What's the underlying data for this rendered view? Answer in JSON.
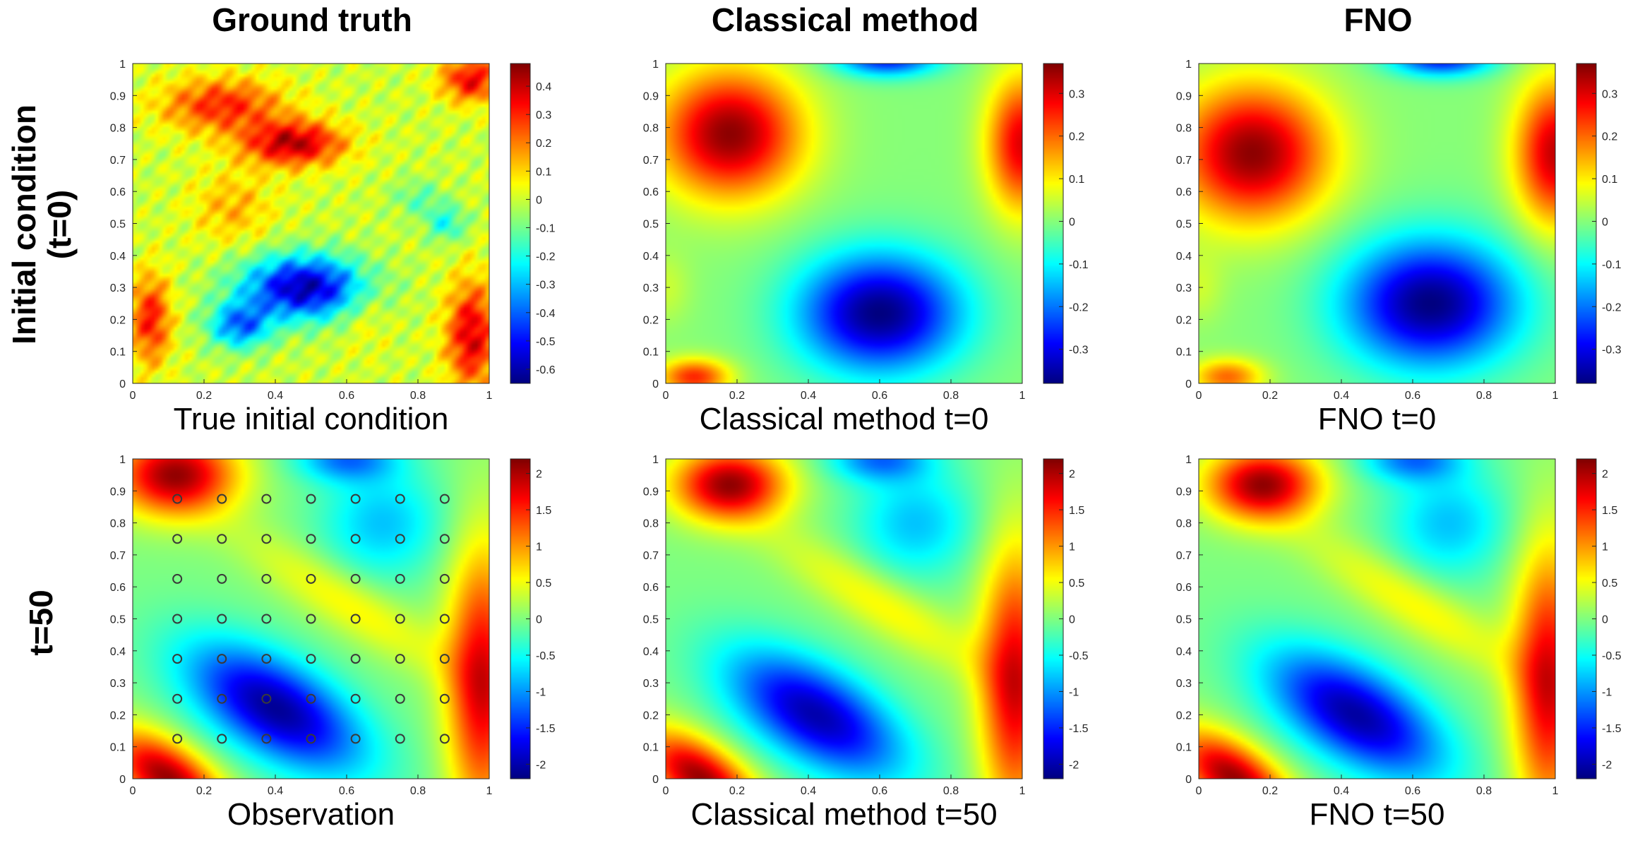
{
  "figure": {
    "column_titles": [
      "Ground truth",
      "Classical method",
      "FNO"
    ],
    "row_titles": [
      [
        "Initial condition",
        "(t=0)"
      ],
      [
        "t=50"
      ]
    ]
  },
  "chart_data": [
    {
      "id": "p00",
      "type": "heatmap",
      "row": 0,
      "col": 0,
      "caption": "True initial condition",
      "colormap": "jet",
      "xlim": [
        0,
        1
      ],
      "ylim": [
        0,
        1
      ],
      "xticks": [
        "0",
        "0.2",
        "0.4",
        "0.6",
        "0.8",
        "1"
      ],
      "yticks": [
        "0",
        "0.1",
        "0.2",
        "0.3",
        "0.4",
        "0.5",
        "0.6",
        "0.7",
        "0.8",
        "0.9",
        "1"
      ],
      "clim": [
        -0.65,
        0.48
      ],
      "cbar_ticks": [
        0.4,
        0.3,
        0.2,
        0.1,
        0,
        -0.1,
        -0.2,
        -0.3,
        -0.4,
        -0.5,
        -0.6
      ],
      "cbar_labels": [
        "0.4",
        "0.3",
        "0.2",
        "0.1",
        "0",
        "-0.1",
        "-0.2",
        "-0.3",
        "-0.4",
        "-0.5",
        "-0.6"
      ],
      "features": [
        {
          "x": 0.48,
          "y": 0.3,
          "sx": 0.12,
          "sy": 0.07,
          "v": -0.6
        },
        {
          "x": 0.3,
          "y": 0.18,
          "sx": 0.06,
          "sy": 0.05,
          "v": -0.38
        },
        {
          "x": 0.45,
          "y": 0.75,
          "sx": 0.1,
          "sy": 0.05,
          "v": 0.42
        },
        {
          "x": 0.25,
          "y": 0.87,
          "sx": 0.12,
          "sy": 0.06,
          "v": 0.3
        },
        {
          "x": 0.95,
          "y": 0.95,
          "sx": 0.06,
          "sy": 0.05,
          "v": 0.35
        },
        {
          "x": 0.95,
          "y": 0.15,
          "sx": 0.05,
          "sy": 0.12,
          "v": 0.38
        },
        {
          "x": 0.05,
          "y": 0.2,
          "sx": 0.04,
          "sy": 0.1,
          "v": 0.32
        },
        {
          "x": 0.28,
          "y": 0.55,
          "sx": 0.08,
          "sy": 0.08,
          "v": 0.14
        },
        {
          "x": 0.88,
          "y": 0.5,
          "sx": 0.04,
          "sy": 0.04,
          "v": -0.2
        },
        {
          "x": 0.8,
          "y": 0.58,
          "sx": 0.05,
          "sy": 0.04,
          "v": -0.12
        },
        {
          "x": 0.65,
          "y": 0.22,
          "sx": 0.05,
          "sy": 0.08,
          "v": 0.08
        }
      ],
      "noise": 0.05
    },
    {
      "id": "p01",
      "type": "heatmap",
      "row": 0,
      "col": 1,
      "caption": "Classical method t=0",
      "colormap": "jet",
      "xlim": [
        0,
        1
      ],
      "ylim": [
        0,
        1
      ],
      "xticks": [
        "0",
        "0.2",
        "0.4",
        "0.6",
        "0.8",
        "1"
      ],
      "yticks": [
        "0",
        "0.1",
        "0.2",
        "0.3",
        "0.4",
        "0.5",
        "0.6",
        "0.7",
        "0.8",
        "0.9",
        "1"
      ],
      "clim": [
        -0.38,
        0.37
      ],
      "cbar_ticks": [
        0.3,
        0.2,
        0.1,
        0,
        -0.1,
        -0.2,
        -0.3
      ],
      "cbar_labels": [
        "0.3",
        "0.2",
        "0.1",
        "0",
        "-0.1",
        "-0.2",
        "-0.3"
      ],
      "features": [
        {
          "x": 0.6,
          "y": 0.22,
          "sx": 0.16,
          "sy": 0.13,
          "v": -0.38
        },
        {
          "x": 0.18,
          "y": 0.78,
          "sx": 0.14,
          "sy": 0.14,
          "v": 0.36
        },
        {
          "x": 1.0,
          "y": 0.75,
          "sx": 0.07,
          "sy": 0.15,
          "v": 0.3
        },
        {
          "x": 0.62,
          "y": 1.02,
          "sx": 0.1,
          "sy": 0.04,
          "v": -0.3
        },
        {
          "x": 0.08,
          "y": 0.02,
          "sx": 0.07,
          "sy": 0.04,
          "v": 0.25
        },
        {
          "x": 0.0,
          "y": 0.3,
          "sx": 0.05,
          "sy": 0.08,
          "v": 0.05
        }
      ],
      "noise": 0
    },
    {
      "id": "p02",
      "type": "heatmap",
      "row": 0,
      "col": 2,
      "caption": "FNO t=0",
      "colormap": "jet",
      "xlim": [
        0,
        1
      ],
      "ylim": [
        0,
        1
      ],
      "xticks": [
        "0",
        "0.2",
        "0.4",
        "0.6",
        "0.8",
        "1"
      ],
      "yticks": [
        "0",
        "0.1",
        "0.2",
        "0.3",
        "0.4",
        "0.5",
        "0.6",
        "0.7",
        "0.8",
        "0.9",
        "1"
      ],
      "clim": [
        -0.38,
        0.37
      ],
      "cbar_ticks": [
        0.3,
        0.2,
        0.1,
        0,
        -0.1,
        -0.2,
        -0.3
      ],
      "cbar_labels": [
        "0.3",
        "0.2",
        "0.1",
        "0",
        "-0.1",
        "-0.2",
        "-0.3"
      ],
      "features": [
        {
          "x": 0.65,
          "y": 0.25,
          "sx": 0.17,
          "sy": 0.14,
          "v": -0.38
        },
        {
          "x": 0.15,
          "y": 0.72,
          "sx": 0.15,
          "sy": 0.15,
          "v": 0.36
        },
        {
          "x": 1.0,
          "y": 0.72,
          "sx": 0.08,
          "sy": 0.16,
          "v": 0.32
        },
        {
          "x": 0.68,
          "y": 1.02,
          "sx": 0.1,
          "sy": 0.04,
          "v": -0.3
        },
        {
          "x": 0.08,
          "y": 0.02,
          "sx": 0.07,
          "sy": 0.04,
          "v": 0.2
        },
        {
          "x": 0.0,
          "y": 0.3,
          "sx": 0.05,
          "sy": 0.08,
          "v": 0.05
        }
      ],
      "noise": 0
    },
    {
      "id": "p10",
      "type": "heatmap",
      "row": 1,
      "col": 0,
      "caption": "Observation",
      "colormap": "jet",
      "xlim": [
        0,
        1
      ],
      "ylim": [
        0,
        1
      ],
      "xticks": [
        "0",
        "0.2",
        "0.4",
        "0.6",
        "0.8",
        "1"
      ],
      "yticks": [
        "0",
        "0.1",
        "0.2",
        "0.3",
        "0.4",
        "0.5",
        "0.6",
        "0.7",
        "0.8",
        "0.9",
        "1"
      ],
      "clim": [
        -2.2,
        2.2
      ],
      "cbar_ticks": [
        2,
        1.5,
        1,
        0.5,
        0,
        -0.5,
        -1,
        -1.5,
        -2
      ],
      "cbar_labels": [
        "2",
        "1.5",
        "1",
        "0.5",
        "0",
        "-0.5",
        "-1",
        "-1.5",
        "-2"
      ],
      "features": [
        {
          "x": 0.4,
          "y": 0.22,
          "sx": 0.2,
          "sy": 0.1,
          "rot": -35,
          "v": -2.1
        },
        {
          "x": 0.12,
          "y": 0.95,
          "sx": 0.12,
          "sy": 0.09,
          "v": 2.1
        },
        {
          "x": 0.1,
          "y": 0.0,
          "sx": 0.14,
          "sy": 0.07,
          "rot": -40,
          "v": 2.1
        },
        {
          "x": 0.98,
          "y": 0.3,
          "sx": 0.07,
          "sy": 0.3,
          "v": 1.8
        },
        {
          "x": 0.6,
          "y": 0.55,
          "sx": 0.25,
          "sy": 0.06,
          "rot": -35,
          "v": 0.6
        },
        {
          "x": 0.6,
          "y": 1.0,
          "sx": 0.1,
          "sy": 0.05,
          "v": -1.1
        },
        {
          "x": 0.7,
          "y": 0.8,
          "sx": 0.12,
          "sy": 0.12,
          "v": -0.8
        }
      ],
      "observations": {
        "x": [
          0.125,
          0.25,
          0.375,
          0.5,
          0.625,
          0.75,
          0.875
        ],
        "y": [
          0.125,
          0.25,
          0.375,
          0.5,
          0.625,
          0.75,
          0.875
        ]
      },
      "noise": 0
    },
    {
      "id": "p11",
      "type": "heatmap",
      "row": 1,
      "col": 1,
      "caption": "Classical method t=50",
      "colormap": "jet",
      "xlim": [
        0,
        1
      ],
      "ylim": [
        0,
        1
      ],
      "xticks": [
        "0",
        "0.2",
        "0.4",
        "0.6",
        "0.8",
        "1"
      ],
      "yticks": [
        "0",
        "0.1",
        "0.2",
        "0.3",
        "0.4",
        "0.5",
        "0.6",
        "0.7",
        "0.8",
        "0.9",
        "1"
      ],
      "clim": [
        -2.2,
        2.2
      ],
      "cbar_ticks": [
        2,
        1.5,
        1,
        0.5,
        0,
        -0.5,
        -1,
        -1.5,
        -2
      ],
      "cbar_labels": [
        "2",
        "1.5",
        "1",
        "0.5",
        "0",
        "-0.5",
        "-1",
        "-1.5",
        "-2"
      ],
      "features": [
        {
          "x": 0.42,
          "y": 0.2,
          "sx": 0.2,
          "sy": 0.1,
          "rot": -35,
          "v": -2.0
        },
        {
          "x": 0.18,
          "y": 0.92,
          "sx": 0.11,
          "sy": 0.08,
          "v": 2.1
        },
        {
          "x": 0.1,
          "y": 0.0,
          "sx": 0.14,
          "sy": 0.07,
          "rot": -40,
          "v": 2.1
        },
        {
          "x": 0.98,
          "y": 0.3,
          "sx": 0.07,
          "sy": 0.3,
          "v": 1.8
        },
        {
          "x": 0.6,
          "y": 0.55,
          "sx": 0.25,
          "sy": 0.06,
          "rot": -35,
          "v": 0.6
        },
        {
          "x": 0.6,
          "y": 1.0,
          "sx": 0.1,
          "sy": 0.05,
          "v": -1.1
        },
        {
          "x": 0.7,
          "y": 0.8,
          "sx": 0.12,
          "sy": 0.12,
          "v": -0.8
        }
      ],
      "noise": 0
    },
    {
      "id": "p12",
      "type": "heatmap",
      "row": 1,
      "col": 2,
      "caption": "FNO t=50",
      "colormap": "jet",
      "xlim": [
        0,
        1
      ],
      "ylim": [
        0,
        1
      ],
      "xticks": [
        "0",
        "0.2",
        "0.4",
        "0.6",
        "0.8",
        "1"
      ],
      "yticks": [
        "0",
        "0.1",
        "0.2",
        "0.3",
        "0.4",
        "0.5",
        "0.6",
        "0.7",
        "0.8",
        "0.9",
        "1"
      ],
      "clim": [
        -2.2,
        2.2
      ],
      "cbar_ticks": [
        2,
        1.5,
        1,
        0.5,
        0,
        -0.5,
        -1,
        -1.5,
        -2
      ],
      "cbar_labels": [
        "2",
        "1.5",
        "1",
        "0.5",
        "0",
        "-0.5",
        "-1",
        "-1.5",
        "-2"
      ],
      "features": [
        {
          "x": 0.44,
          "y": 0.2,
          "sx": 0.2,
          "sy": 0.1,
          "rot": -35,
          "v": -2.05
        },
        {
          "x": 0.18,
          "y": 0.92,
          "sx": 0.11,
          "sy": 0.08,
          "v": 2.1
        },
        {
          "x": 0.1,
          "y": 0.0,
          "sx": 0.14,
          "sy": 0.07,
          "rot": -40,
          "v": 2.1
        },
        {
          "x": 0.98,
          "y": 0.3,
          "sx": 0.07,
          "sy": 0.3,
          "v": 1.8
        },
        {
          "x": 0.6,
          "y": 0.55,
          "sx": 0.25,
          "sy": 0.06,
          "rot": -35,
          "v": 0.6
        },
        {
          "x": 0.6,
          "y": 1.0,
          "sx": 0.1,
          "sy": 0.05,
          "v": -1.1
        },
        {
          "x": 0.7,
          "y": 0.8,
          "sx": 0.12,
          "sy": 0.12,
          "v": -0.8
        }
      ],
      "noise": 0
    }
  ]
}
